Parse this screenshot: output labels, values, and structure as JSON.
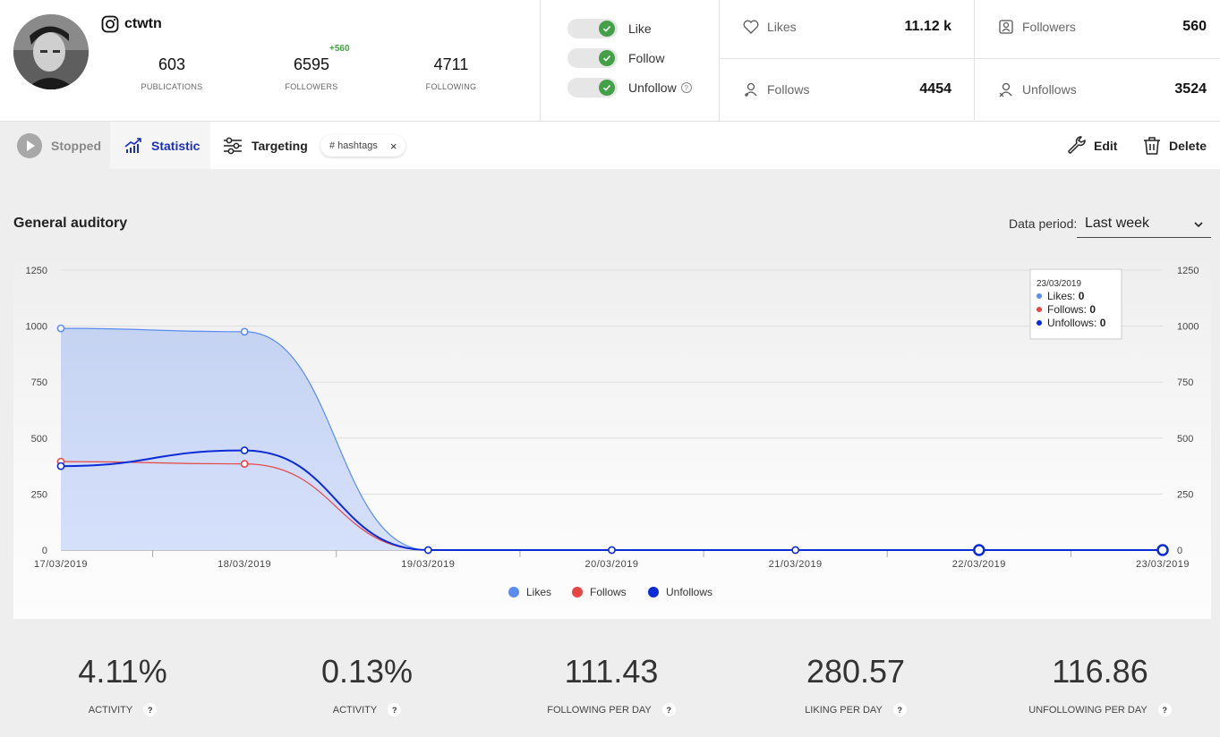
{
  "profile": {
    "username": "ctwtn",
    "stats": [
      {
        "value": "603",
        "label": "Publications"
      },
      {
        "value": "6595",
        "label": "Followers",
        "delta": "+560"
      },
      {
        "value": "4711",
        "label": "Following"
      }
    ]
  },
  "actions_toggles": [
    {
      "label": "Like",
      "on": true
    },
    {
      "label": "Follow",
      "on": true
    },
    {
      "label": "Unfollow",
      "on": true,
      "help": "?"
    }
  ],
  "metrics": {
    "likes": {
      "label": "Likes",
      "value": "11.12 k"
    },
    "followers": {
      "label": "Followers",
      "value": "560"
    },
    "follows": {
      "label": "Follows",
      "value": "4454"
    },
    "unfollows": {
      "label": "Unfollows",
      "value": "3524"
    }
  },
  "toolbar": {
    "stopped": "Stopped",
    "statistic": "Statistic",
    "targeting": "Targeting",
    "chip": "# hashtags",
    "chip_close": "×",
    "edit": "Edit",
    "delete": "Delete"
  },
  "section": {
    "title": "General auditory",
    "period_label": "Data period:",
    "period_value": "Last week"
  },
  "tooltip": {
    "date": "23/03/2019",
    "rows": [
      {
        "label": "Likes: ",
        "value": "0"
      },
      {
        "label": "Follows: ",
        "value": "0"
      },
      {
        "label": "Unfollows: ",
        "value": "0"
      }
    ]
  },
  "colors": {
    "likes": "#5b8def",
    "follows": "#e84545",
    "unfollows": "#0a2bd6",
    "accent": "#1a2fbf",
    "success": "#43a047"
  },
  "chart_data": {
    "type": "line",
    "x": [
      "17/03/2019",
      "18/03/2019",
      "19/03/2019",
      "20/03/2019",
      "21/03/2019",
      "22/03/2019",
      "23/03/2019"
    ],
    "series": [
      {
        "name": "Likes",
        "values": [
          990,
          975,
          0,
          0,
          0,
          0,
          0
        ]
      },
      {
        "name": "Follows",
        "values": [
          395,
          385,
          0,
          0,
          0,
          0,
          0
        ]
      },
      {
        "name": "Unfollows",
        "values": [
          375,
          445,
          0,
          0,
          0,
          0,
          0
        ]
      }
    ],
    "ylim": [
      0,
      1250
    ],
    "yticks": [
      "0",
      "250",
      "500",
      "750",
      "1000",
      "1250"
    ],
    "legend": "bottom-center",
    "grid": true
  },
  "kpis": [
    {
      "value": "4.11%",
      "label": "Activity"
    },
    {
      "value": "0.13%",
      "label": "Activity"
    },
    {
      "value": "111.43",
      "label": "Following per day"
    },
    {
      "value": "280.57",
      "label": "Liking per day"
    },
    {
      "value": "116.86",
      "label": "Unfollowing per day"
    }
  ],
  "help_glyph": "?"
}
